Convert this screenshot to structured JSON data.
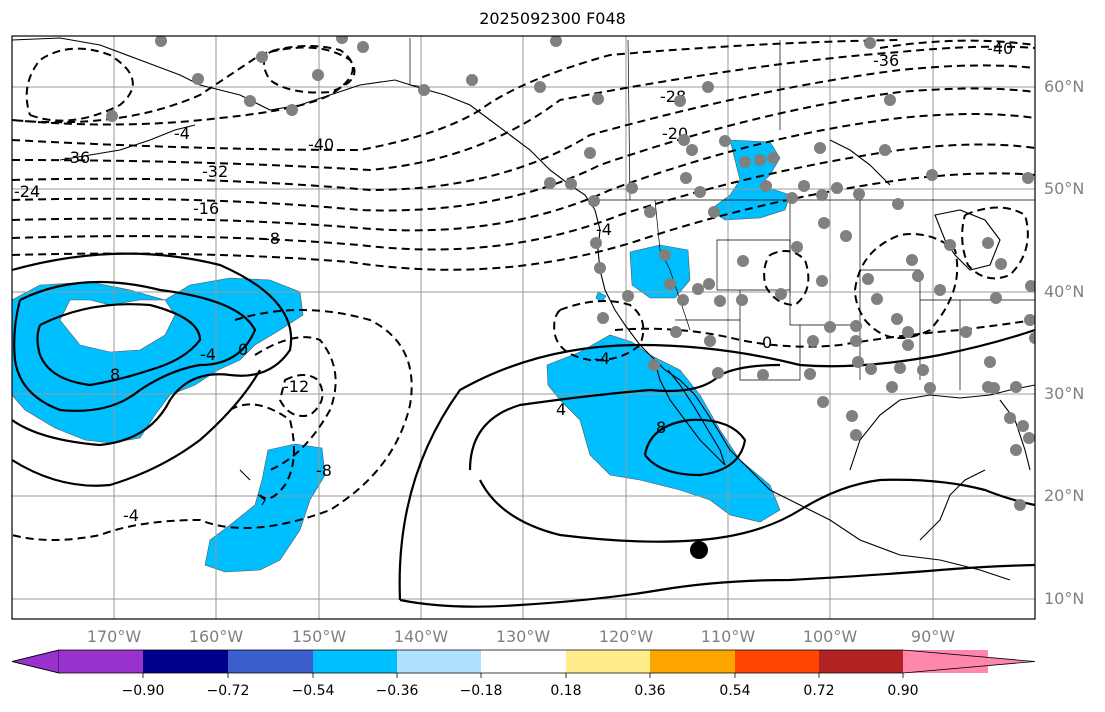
{
  "title": "2025092300 F048",
  "lat_labels": [
    "60°N",
    "50°N",
    "40°N",
    "30°N",
    "20°N",
    "10°N"
  ],
  "lon_labels": [
    "170°W",
    "160°W",
    "150°W",
    "140°W",
    "130°W",
    "120°W",
    "110°W",
    "100°W",
    "90°W"
  ],
  "contour_labels": [
    "-40",
    "-36",
    "-28",
    "-20",
    "-36",
    "-32",
    "-24",
    "-16",
    "-8",
    "-4",
    "-4",
    "-40",
    "-4",
    "0",
    "-4",
    "-4",
    "-12",
    "-8",
    "-4",
    "4",
    "8",
    "4",
    "8",
    "0",
    "-4"
  ],
  "colorbar": {
    "ticks": [
      "−0.90",
      "−0.72",
      "−0.54",
      "−0.36",
      "−0.18",
      "0.18",
      "0.36",
      "0.54",
      "0.72",
      "0.90"
    ],
    "colors": [
      "#9932CC",
      "#00008B",
      "#3A5FCD",
      "#00BFFF",
      "#B0E2FF",
      "#FFFFFF",
      "#FFEC8B",
      "#FFA500",
      "#FF4500",
      "#B22222",
      "#FF88AA"
    ]
  },
  "shading_color": "#00BFFF",
  "marker_color": "#808080"
}
